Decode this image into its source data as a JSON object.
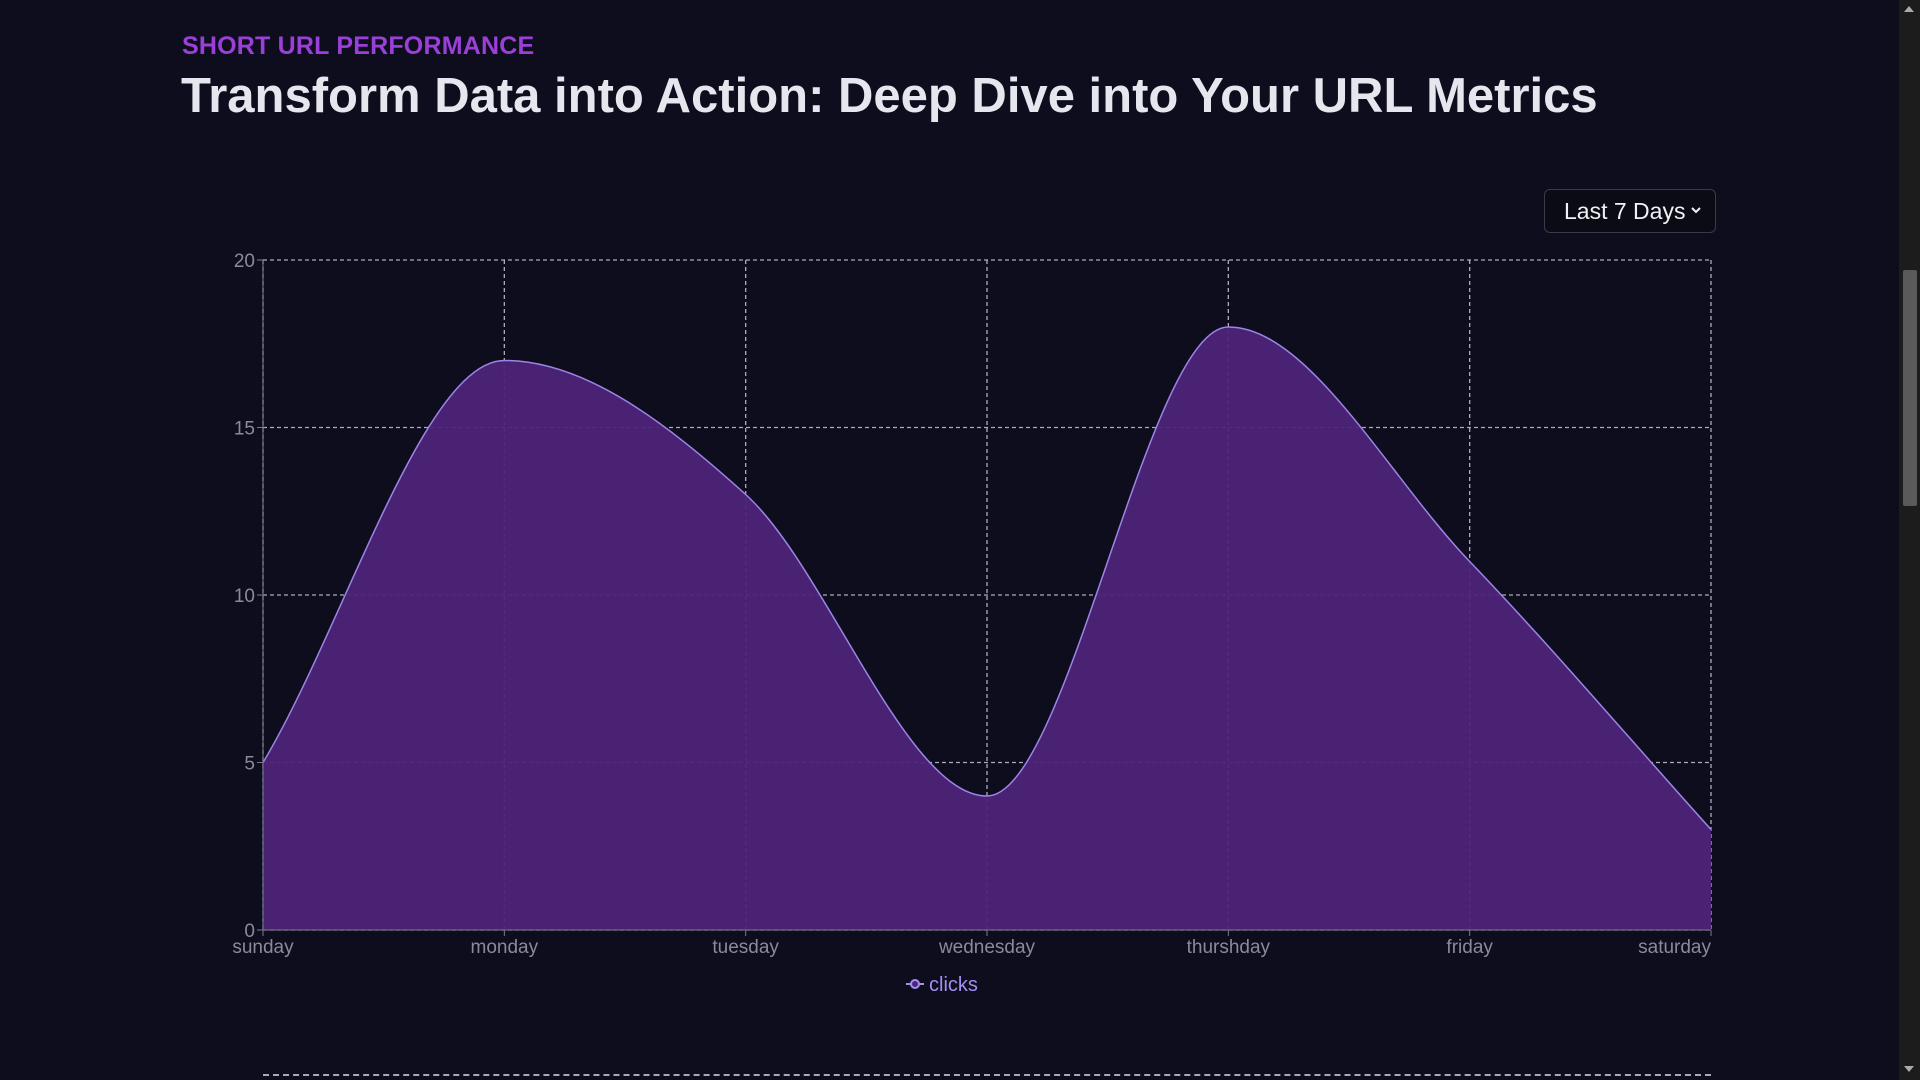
{
  "header": {
    "eyebrow": "SHORT URL PERFORMANCE",
    "title": "Transform Data into Action: Deep Dive into Your URL Metrics"
  },
  "range_select": {
    "value": "Last 7 Days",
    "icon": "chevron-down-icon"
  },
  "colors": {
    "accent": "#9b3fd9",
    "area_fill": "#4e2479",
    "area_stroke": "#9b85e6",
    "legend_text": "#a38ff0",
    "axis_text": "#8a8a98",
    "grid": "#c8c8d8"
  },
  "chart_data": {
    "type": "area",
    "categories": [
      "sunday",
      "monday",
      "tuesday",
      "wednesday",
      "thurshday",
      "friday",
      "saturday"
    ],
    "series": [
      {
        "name": "clicks",
        "values": [
          5,
          17,
          13,
          4,
          18,
          11,
          3
        ]
      }
    ],
    "ylim": [
      0,
      20
    ],
    "yticks": [
      0,
      5,
      10,
      15,
      20
    ],
    "grid": true,
    "legend": "bottom-center",
    "title": "",
    "xlabel": "",
    "ylabel": ""
  }
}
